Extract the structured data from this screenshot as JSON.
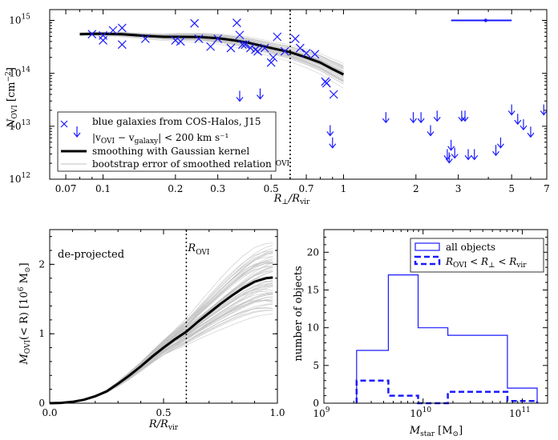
{
  "chart_data": [
    {
      "type": "scatter",
      "title": "",
      "xlabel": "R⊥/Rvir",
      "ylabel": "N_OVI [cm⁻²]",
      "xscale": "log",
      "yscale": "log",
      "xlim": [
        0.06,
        7
      ],
      "ylim": [
        1000000000000.0,
        1600000000000000.0
      ],
      "xticks": [
        {
          "v": 0.07,
          "t": "0.07"
        },
        {
          "v": 0.1,
          "t": "0.1"
        },
        {
          "v": 0.2,
          "t": "0.2"
        },
        {
          "v": 0.3,
          "t": "0.3"
        },
        {
          "v": 0.5,
          "t": "0.5"
        },
        {
          "v": 0.7,
          "t": "0.7"
        },
        {
          "v": 1,
          "t": "1"
        },
        {
          "v": 2,
          "t": "2"
        },
        {
          "v": 3,
          "t": "3"
        },
        {
          "v": 5,
          "t": "5"
        },
        {
          "v": 7,
          "t": "7"
        }
      ],
      "ymajor": [
        {
          "e": 12,
          "t": "10"
        },
        {
          "e": 13,
          "t": "10"
        },
        {
          "e": 14,
          "t": "10"
        },
        {
          "e": 15,
          "t": "10"
        }
      ],
      "detections_x": [
        0.09,
        0.1,
        0.1,
        0.11,
        0.12,
        0.12,
        0.15,
        0.2,
        0.21,
        0.24,
        0.25,
        0.28,
        0.3,
        0.34,
        0.36,
        0.37,
        0.38,
        0.39,
        0.41,
        0.43,
        0.44,
        0.47,
        0.5,
        0.51,
        0.53,
        0.57,
        0.63,
        0.66,
        0.7,
        0.76,
        0.84,
        0.85,
        0.91
      ],
      "detections_y": [
        550000000000000.0,
        420000000000000.0,
        520000000000000.0,
        650000000000000.0,
        350000000000000.0,
        720000000000000.0,
        450000000000000.0,
        420000000000000.0,
        400000000000000.0,
        880000000000000.0,
        450000000000000.0,
        320000000000000.0,
        450000000000000.0,
        300000000000000.0,
        900000000000000.0,
        530000000000000.0,
        350000000000000.0,
        350000000000000.0,
        300000000000000.0,
        280000000000000.0,
        260000000000000.0,
        300000000000000.0,
        160000000000000.0,
        200000000000000.0,
        490000000000000.0,
        260000000000000.0,
        450000000000000.0,
        300000000000000.0,
        240000000000000.0,
        230000000000000.0,
        70000000000000.0,
        65000000000000.0,
        40000000000000.0
      ],
      "upper_limits_x": [
        0.37,
        0.45,
        0.88,
        0.9,
        1.5,
        1.95,
        2.1,
        2.3,
        2.45,
        2.7,
        2.75,
        2.8,
        2.9,
        3.1,
        3.2,
        3.3,
        3.5,
        4.3,
        4.5,
        5.0,
        5.3,
        5.6,
        6.0,
        6.8
      ],
      "upper_limits_y": [
        38000000000000.0,
        42000000000000.0,
        8500000000000.0,
        5000000000000.0,
        15000000000000.0,
        15000000000000.0,
        15000000000000.0,
        8500000000000.0,
        16000000000000.0,
        3000000000000.0,
        2600000000000.0,
        4500000000000.0,
        3200000000000.0,
        16000000000000.0,
        16000000000000.0,
        3000000000000.0,
        3000000000000.0,
        3600000000000.0,
        5000000000000.0,
        21000000000000.0,
        14000000000000.0,
        11000000000000.0,
        8000000000000.0,
        21000000000000.0
      ],
      "smooth_x": [
        0.08,
        0.09,
        0.1,
        0.12,
        0.15,
        0.18,
        0.2,
        0.25,
        0.3,
        0.35,
        0.4,
        0.5,
        0.6,
        0.7,
        0.8,
        0.9,
        1.0
      ],
      "smooth_y": [
        550000000000000.0,
        560000000000000.0,
        560000000000000.0,
        550000000000000.0,
        510000000000000.0,
        490000000000000.0,
        490000000000000.0,
        485000000000000.0,
        460000000000000.0,
        420000000000000.0,
        380000000000000.0,
        300000000000000.0,
        250000000000000.0,
        200000000000000.0,
        160000000000000.0,
        120000000000000.0,
        95000000000000.0
      ],
      "error_bar": {
        "x": 3.9,
        "xlo": 2.8,
        "xhi": 5.0,
        "y": 1000000000000000.0
      },
      "vline": {
        "x": 0.6,
        "label": "R",
        "label_sub": "OVI"
      },
      "legend": [
        {
          "kind": "marker",
          "text": "blue galaxies from COS-Halos, J15"
        },
        {
          "kind": "marker2",
          "text": "|v",
          "sub1": "OVI",
          "mid": " − v",
          "sub2": "galaxy",
          "tail": "| < 200 km s⁻¹"
        },
        {
          "kind": "thick",
          "text": "smoothing with Gaussian kernel"
        },
        {
          "kind": "thin",
          "text": "bootstrap error of smoothed relation"
        }
      ],
      "xlabel_parts": {
        "a": "R",
        "a_sub": "⊥",
        "b": "/R",
        "b_sub": "vir"
      },
      "ylabel_parts": {
        "a": "N",
        "a_sub": "OVI",
        "b": " [cm",
        "b_sup": "−2",
        "c": "]"
      }
    },
    {
      "type": "line",
      "xlabel": "R/Rvir",
      "ylabel": "M_OVI(<R) [10⁶ M⊙]",
      "xlim": [
        0,
        1
      ],
      "ylim": [
        0,
        2.5
      ],
      "xticks": [
        {
          "v": 0,
          "t": "0.0"
        },
        {
          "v": 0.5,
          "t": "0.5"
        },
        {
          "v": 1,
          "t": "1.0"
        }
      ],
      "yticks": [
        {
          "v": 0,
          "t": "0"
        },
        {
          "v": 1,
          "t": "1"
        },
        {
          "v": 2,
          "t": "2"
        }
      ],
      "x": [
        0.0,
        0.05,
        0.1,
        0.15,
        0.2,
        0.25,
        0.3,
        0.35,
        0.4,
        0.45,
        0.5,
        0.55,
        0.6,
        0.65,
        0.7,
        0.75,
        0.8,
        0.85,
        0.9,
        0.95,
        0.98
      ],
      "y": [
        0.0,
        0.005,
        0.02,
        0.05,
        0.1,
        0.17,
        0.28,
        0.4,
        0.53,
        0.67,
        0.8,
        0.92,
        1.03,
        1.17,
        1.3,
        1.43,
        1.55,
        1.66,
        1.75,
        1.8,
        1.81
      ],
      "annotation": "de-projected",
      "vline": {
        "x": 0.6,
        "label": "R",
        "label_sub": "OVI"
      },
      "xlabel_parts": {
        "a": "R",
        "b": "/R",
        "b_sub": "vir"
      },
      "ylabel_parts": {
        "a": "M",
        "a_sub": "OVI",
        "b": "(< R) [10",
        "b_sup": "6",
        "c": " M",
        "c_sub": "⊙",
        "d": "]"
      }
    },
    {
      "type": "histogram",
      "xlabel": "Mstar [M⊙]",
      "ylabel": "number of objects",
      "xscale": "log",
      "xlim": [
        1000000000.0,
        180000000000.0
      ],
      "ylim": [
        0,
        23
      ],
      "xticks": [
        {
          "e": 9,
          "t": "10",
          "sup": "9"
        },
        {
          "e": 10,
          "t": "10",
          "sup": "10"
        },
        {
          "e": 11,
          "t": "10",
          "sup": "11"
        }
      ],
      "yticks": [
        {
          "v": 0,
          "t": "0"
        },
        {
          "v": 5,
          "t": "5"
        },
        {
          "v": 10,
          "t": "10"
        },
        {
          "v": 15,
          "t": "15"
        },
        {
          "v": 20,
          "t": "20"
        }
      ],
      "bin_edges_log": [
        9.33,
        9.65,
        9.95,
        10.25,
        10.85,
        11.15
      ],
      "series": [
        {
          "name": "all objects",
          "values": [
            7,
            17,
            10,
            9,
            2
          ]
        },
        {
          "name": "ROVI < R⊥ < Rvir",
          "values": [
            3,
            1,
            0,
            1.5,
            0.3
          ]
        }
      ],
      "xlabel_parts": {
        "a": "M",
        "a_sub": "star",
        "b": " [M",
        "b_sub": "⊙",
        "c": "]"
      },
      "legend2_parts": {
        "a": "R",
        "a_sub": "OVI",
        "b": " < R",
        "b_sub": "⊥",
        "c": " < R",
        "c_sub": "vir"
      }
    }
  ],
  "colors": {
    "blue": "#1a1aff",
    "gray": "#c0c0c0",
    "black": "#000000"
  }
}
